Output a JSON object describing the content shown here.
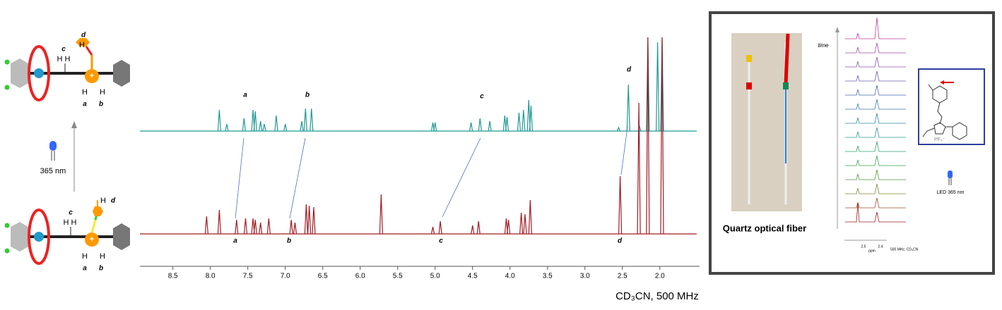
{
  "chart_data": {
    "type": "spectrum",
    "x_label": "CD₃CN, 500 MHz",
    "xlim": [
      8.94,
      1.47
    ],
    "xticks": [
      8.5,
      {
        "value": 8,
        "label": "8.0"
      },
      7.5,
      {
        "value": 7,
        "label": "7.0"
      },
      6.5,
      {
        "value": 6,
        "label": "6.0"
      },
      5.5,
      {
        "value": 5,
        "label": "5.0"
      },
      4.5,
      {
        "value": 4,
        "label": "4.0"
      },
      3.5,
      {
        "value": 3,
        "label": "3.0"
      },
      2.5,
      {
        "value": 2,
        "label": "2.0"
      }
    ],
    "series": [
      {
        "color": "#1f9a94",
        "x": [
          7.88,
          7.78,
          7.55,
          7.43,
          7.4,
          7.33,
          7.28,
          7.12,
          7.0,
          6.78,
          6.73,
          6.65,
          5.03,
          5.0,
          4.52,
          4.4,
          4.27,
          4.07,
          4.04,
          3.88,
          3.82,
          3.75,
          3.72,
          2.55,
          2.42,
          2.27,
          2.16,
          2.03,
          1.97
        ],
        "values": [
          30,
          10,
          18,
          30,
          28,
          14,
          10,
          22,
          10,
          14,
          32,
          32,
          12,
          12,
          12,
          18,
          14,
          22,
          20,
          26,
          30,
          44,
          36,
          5,
          66,
          6,
          133,
          126,
          133
        ]
      },
      {
        "color": "#a01c24",
        "x": [
          8.05,
          7.88,
          7.65,
          7.53,
          7.43,
          7.4,
          7.33,
          7.22,
          6.92,
          6.87,
          6.72,
          6.68,
          6.62,
          5.72,
          5.03,
          4.93,
          4.5,
          4.42,
          4.05,
          4.02,
          3.85,
          3.8,
          3.73,
          2.53,
          2.28,
          2.16,
          1.97
        ],
        "values": [
          25,
          34,
          20,
          22,
          22,
          20,
          16,
          22,
          20,
          16,
          42,
          40,
          38,
          56,
          10,
          18,
          12,
          18,
          22,
          20,
          30,
          28,
          48,
          82,
          186,
          279,
          279
        ]
      }
    ],
    "top_labels": [
      "a",
      "b",
      "c",
      "d"
    ],
    "bottom_labels": [
      "a",
      "b",
      "c",
      "d"
    ]
  },
  "left_panel": {
    "top": {
      "d": "d",
      "c": "c",
      "hh": "H H",
      "hd": "H",
      "ha": "H",
      "hb": "H",
      "a": "a",
      "b": "b"
    },
    "light": "365 nm",
    "bottom": {
      "d": "d",
      "c": "c",
      "hh": "H H",
      "hd": "H",
      "ha": "H",
      "hb": "H",
      "a": "a",
      "b": "b"
    }
  },
  "right_panel": {
    "caption": "Quartz optical fiber",
    "time": "time",
    "tick1": "2.5",
    "tick2": "2.4",
    "unit": "ppm",
    "note": "500 MHz, CD₃CN",
    "counterion": "PF₆⁻",
    "led": "LED 365 nm"
  }
}
